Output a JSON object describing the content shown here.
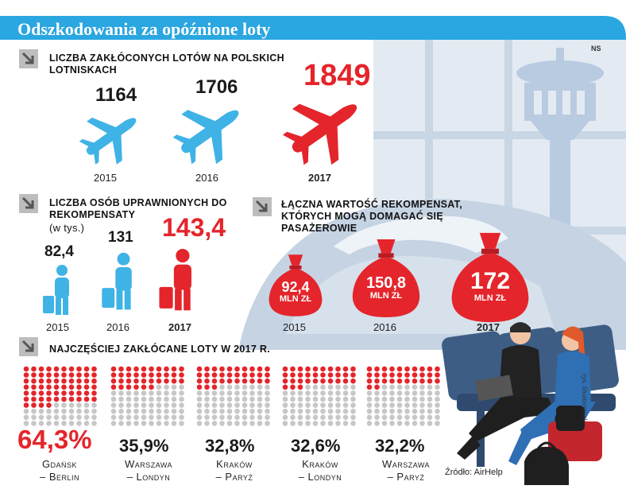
{
  "title": "Odszkodowania za opóźnione loty",
  "author_initials": "NS",
  "section1": {
    "header": "Liczba zakłóconych lotów na polskich lotniskach",
    "items": [
      {
        "value": "1164",
        "year": "2015"
      },
      {
        "value": "1706",
        "year": "2016"
      },
      {
        "value": "1849",
        "year": "2017"
      }
    ]
  },
  "section2": {
    "header": "Liczba osób uprawnionych do rekompensaty",
    "unit": "(w tys.)",
    "items": [
      {
        "value": "82,4",
        "year": "2015"
      },
      {
        "value": "131",
        "year": "2016"
      },
      {
        "value": "143,4",
        "year": "2017"
      }
    ]
  },
  "section3": {
    "header": "Łączna wartość rekompensat, których mogą domagać się pasażerowie",
    "items": [
      {
        "value": "92,4",
        "unit": "MLN ZŁ",
        "year": "2015"
      },
      {
        "value": "150,8",
        "unit": "MLN ZŁ",
        "year": "2016"
      },
      {
        "value": "172",
        "unit": "MLN ZŁ",
        "year": "2017"
      }
    ]
  },
  "section4": {
    "header": "Najczęściej zakłócane loty w 2017 r.",
    "routes": [
      {
        "percent": "64,3%",
        "value": 64.3,
        "line1": "Gdańsk",
        "line2": "– Berlin"
      },
      {
        "percent": "35,9%",
        "value": 35.9,
        "line1": "Warszawa",
        "line2": "– Londyn"
      },
      {
        "percent": "32,8%",
        "value": 32.8,
        "line1": "Kraków",
        "line2": "– Paryż"
      },
      {
        "percent": "32,6%",
        "value": 32.6,
        "line1": "Kraków",
        "line2": "– Londyn"
      },
      {
        "percent": "32,2%",
        "value": 32.2,
        "line1": "Warszawa",
        "line2": "– Paryż"
      }
    ]
  },
  "source": "Źródło: AirHelp",
  "credit": "rys. Shutterstock",
  "colors": {
    "blue": "#3fb3e6",
    "red": "#e4252b",
    "grey": "#c7c7c7",
    "bg_blue": "#dfe7f0"
  }
}
